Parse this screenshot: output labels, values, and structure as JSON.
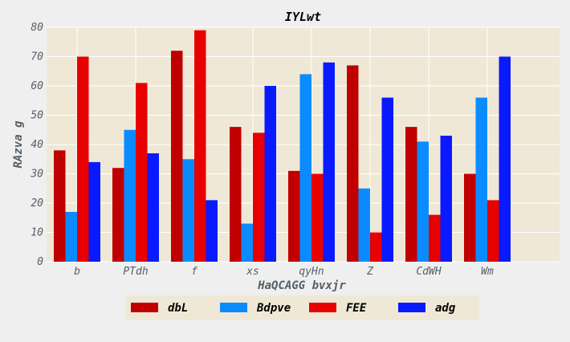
{
  "chart_data": {
    "type": "bar",
    "title": "IYLwt",
    "xlabel": "HaQCAGG bvxjr",
    "ylabel": "RAzva g",
    "categories": [
      "b",
      "PTdh",
      "f",
      "xs",
      "qyHn",
      "Z",
      "CdWH",
      "Wm"
    ],
    "ylim": [
      0,
      80
    ],
    "yticks": [
      0,
      10,
      20,
      30,
      40,
      50,
      60,
      70,
      80
    ],
    "grid": true,
    "legend_position": "bottom-center",
    "plot_background": "#efe8d6",
    "series": [
      {
        "name": "dbL",
        "color": "#c00000",
        "values": [
          38,
          32,
          72,
          46,
          31,
          67,
          46,
          30
        ]
      },
      {
        "name": "Bdpve",
        "color": "#0a8cff",
        "values": [
          17,
          45,
          35,
          13,
          64,
          25,
          41,
          56
        ]
      },
      {
        "name": "FEE",
        "color": "#e60000",
        "values": [
          70,
          61,
          79,
          44,
          30,
          10,
          16,
          21
        ]
      },
      {
        "name": "adg",
        "color": "#0a1aff",
        "values": [
          34,
          37,
          21,
          60,
          68,
          56,
          43,
          70
        ]
      }
    ]
  }
}
